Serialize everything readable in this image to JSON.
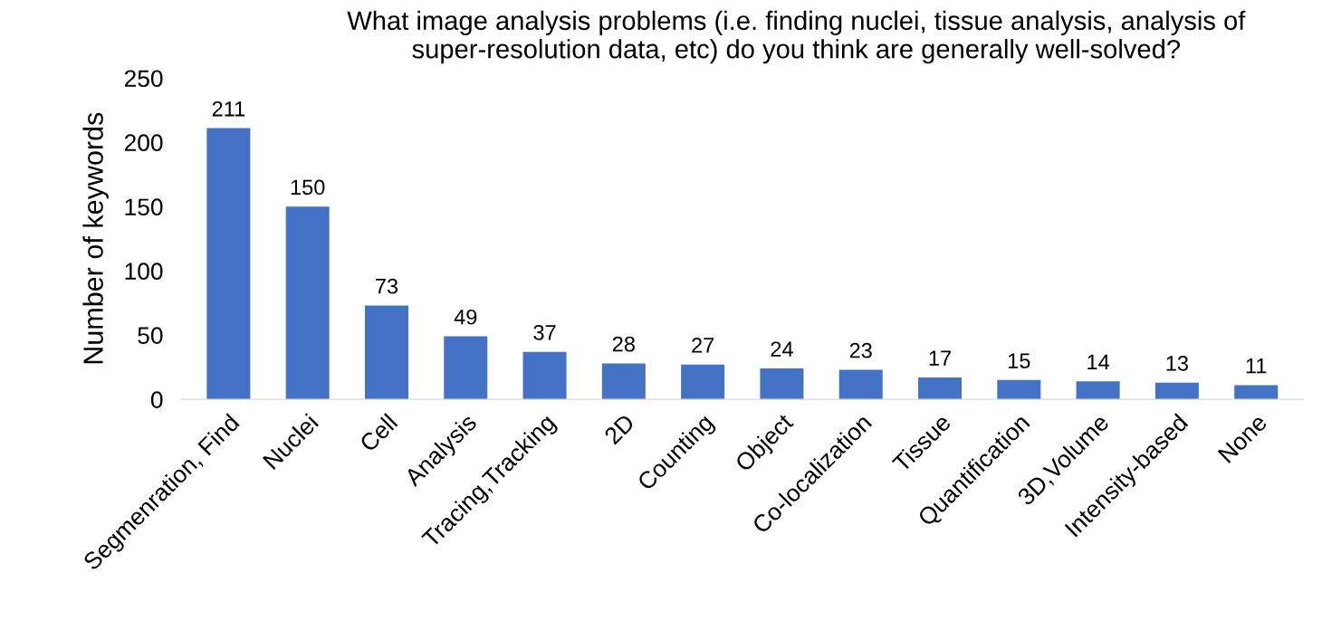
{
  "chart_data": {
    "type": "bar",
    "title": "What image analysis problems (i.e. finding nuclei, tissue analysis, analysis of super-resolution data, etc) do you think are generally well-solved?",
    "ylabel": "Number of keywords",
    "categories": [
      "Segmenration, Find",
      "Nuclei",
      "Cell",
      "Analysis",
      "Tracing,Tracking",
      "2D",
      "Counting",
      "Object",
      "Co-localization",
      "Tissue",
      "Quantification",
      "3D,Volume",
      "Intensity-based",
      "None"
    ],
    "values": [
      211,
      150,
      73,
      49,
      37,
      28,
      27,
      24,
      23,
      17,
      15,
      14,
      13,
      11
    ],
    "color": "#4472c4",
    "ylim": [
      0,
      250
    ],
    "yticks": [
      0,
      50,
      100,
      150,
      200,
      250
    ],
    "data_labels": true,
    "grid": false,
    "legend": false
  }
}
